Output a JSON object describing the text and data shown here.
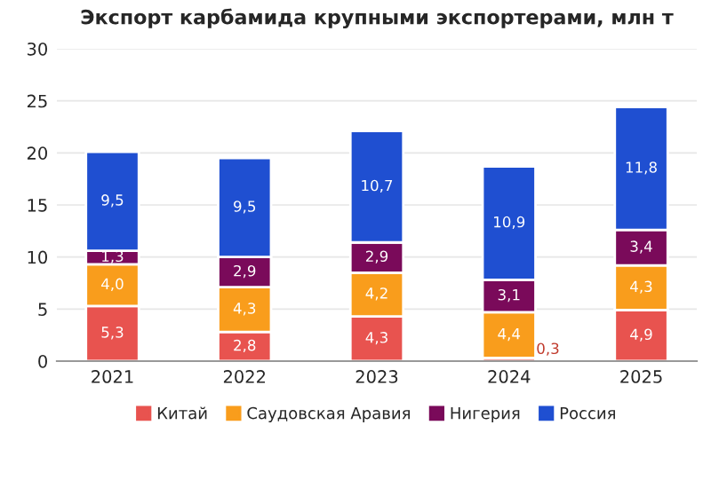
{
  "chart_data": {
    "type": "bar",
    "title": "Экспорт карбамида крупными экспортерами, млн т",
    "categories": [
      "2021",
      "2022",
      "2023",
      "2024",
      "2025"
    ],
    "stacked": true,
    "series": [
      {
        "name": "Китай",
        "color": "#e8534f",
        "values": [
          5.3,
          2.8,
          4.3,
          0.3,
          4.9
        ],
        "value_labels": [
          "5,3",
          "2,8",
          "4,3",
          "0,3",
          "4,9"
        ]
      },
      {
        "name": "Саудовская Аравия",
        "color": "#f99d1c",
        "values": [
          4.0,
          4.3,
          4.2,
          4.4,
          4.3
        ],
        "value_labels": [
          "4,0",
          "4,3",
          "4,2",
          "4,4",
          "4,3"
        ]
      },
      {
        "name": "Нигерия",
        "color": "#7a0a5a",
        "values": [
          1.3,
          2.9,
          2.9,
          3.1,
          3.4
        ],
        "value_labels": [
          "1,3",
          "2,9",
          "2,9",
          "3,1",
          "3,4"
        ]
      },
      {
        "name": "Россия",
        "color": "#1f4fd1",
        "values": [
          9.5,
          9.5,
          10.7,
          10.9,
          11.8
        ],
        "value_labels": [
          "9,5",
          "9,5",
          "10,7",
          "10,9",
          "11,8"
        ]
      }
    ],
    "ylim": [
      0,
      30
    ],
    "yticks": [
      0,
      5,
      10,
      15,
      20,
      25,
      30
    ],
    "grid": "y",
    "legend": "bottom"
  }
}
